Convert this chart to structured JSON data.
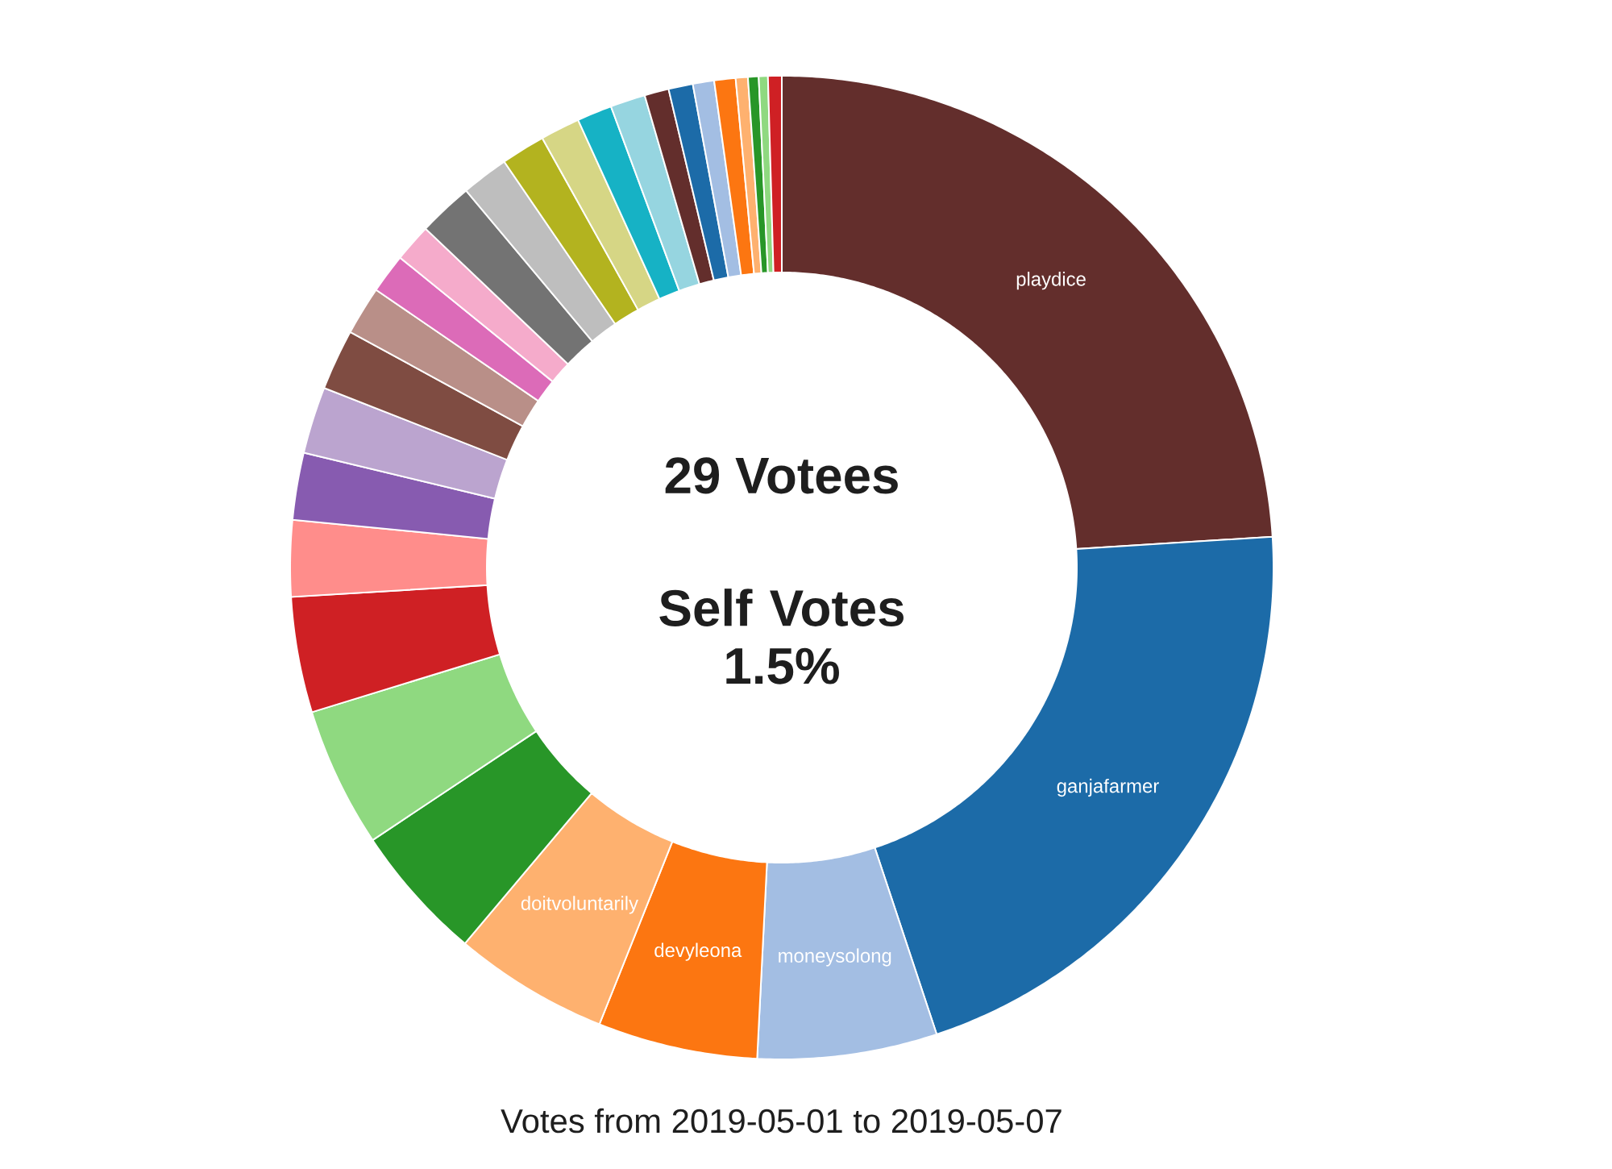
{
  "chart_data": {
    "type": "donut",
    "title": "29 Votees",
    "subtitle": "Self Votes 1.5%",
    "annotations": [
      "Votes from 2019-05-01 to 2019-05-07"
    ],
    "categories": [
      "playdice",
      "ganjafarmer",
      "moneysolong",
      "devyleona",
      "doitvoluntarily",
      null,
      null,
      null,
      null,
      null,
      null,
      null,
      null,
      null,
      null,
      null,
      null,
      null,
      null,
      null,
      null,
      null,
      null,
      null,
      null,
      null,
      null,
      null,
      null
    ],
    "values": [
      24.0,
      20.9,
      5.9,
      5.25,
      5.1,
      4.5,
      4.6,
      3.8,
      2.5,
      2.2,
      2.2,
      2.0,
      1.6,
      1.3,
      1.25,
      1.8,
      1.55,
      1.45,
      1.3,
      1.15,
      1.15,
      0.8,
      0.8,
      0.7,
      0.7,
      0.4,
      0.35,
      0.3,
      0.45
    ],
    "colors": [
      "#632e2c",
      "#1c6ba8",
      "#a3bee3",
      "#fc7611",
      "#feb16f",
      "#289628",
      "#8fd980",
      "#cf2024",
      "#ff8d8b",
      "#875bb0",
      "#bba4cf",
      "#7f4c42",
      "#b98f88",
      "#dc6bb8",
      "#f5abcb",
      "#737373",
      "#bebebe",
      "#b3b31f",
      "#d6d685",
      "#16b2c5",
      "#96d5e0",
      "#632e2c",
      "#1c6ba8",
      "#a3bee3",
      "#fc7611",
      "#feb16f",
      "#289628",
      "#8fd980",
      "#cf2024"
    ]
  }
}
